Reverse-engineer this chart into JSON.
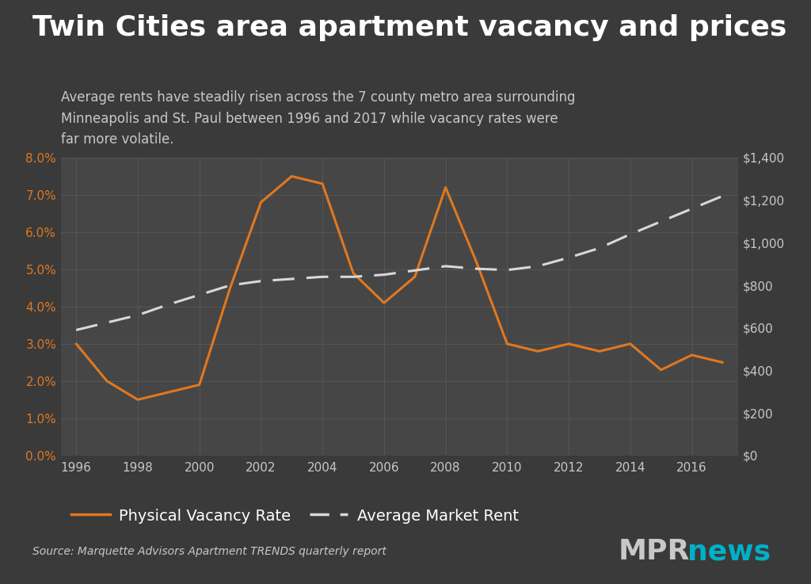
{
  "title": "Twin Cities area apartment vacancy and prices",
  "subtitle": "Average rents have steadily risen across the 7 county metro area surrounding\nMinneapolis and St. Paul between 1996 and 2017 while vacancy rates were\nfar more volatile.",
  "source": "Source: Marquette Advisors Apartment TRENDS quarterly report",
  "bg_color": "#3a3a3a",
  "plot_bg_color": "#464646",
  "vacancy_color": "#e07820",
  "rent_color": "#d8d8d8",
  "title_color": "#ffffff",
  "subtitle_color": "#c8c8c8",
  "left_axis_color": "#e07820",
  "right_axis_color": "#c8c8c8",
  "grid_color": "#585858",
  "vacancy_years": [
    1996,
    1997,
    1998,
    1999,
    2000,
    2001,
    2002,
    2003,
    2004,
    2005,
    2006,
    2007,
    2008,
    2009,
    2010,
    2011,
    2012,
    2013,
    2014,
    2015,
    2016,
    2017
  ],
  "vacancy_values": [
    0.03,
    0.02,
    0.015,
    0.017,
    0.019,
    0.045,
    0.068,
    0.075,
    0.073,
    0.049,
    0.041,
    0.048,
    0.072,
    0.052,
    0.03,
    0.028,
    0.03,
    0.028,
    0.03,
    0.023,
    0.027,
    0.025
  ],
  "rent_years": [
    1996,
    1997,
    1998,
    1999,
    2000,
    2001,
    2002,
    2003,
    2004,
    2005,
    2006,
    2007,
    2008,
    2009,
    2010,
    2011,
    2012,
    2013,
    2014,
    2015,
    2016,
    2017
  ],
  "rent_values": [
    590,
    625,
    660,
    710,
    755,
    800,
    820,
    830,
    840,
    840,
    850,
    870,
    890,
    878,
    872,
    890,
    930,
    975,
    1040,
    1100,
    1160,
    1220
  ],
  "xlim": [
    1995.5,
    2017.5
  ],
  "ylim_left": [
    0.0,
    0.08
  ],
  "ylim_right": [
    0,
    1400
  ],
  "xticks": [
    1996,
    1998,
    2000,
    2002,
    2004,
    2006,
    2008,
    2010,
    2012,
    2014,
    2016
  ],
  "yticks_left": [
    0.0,
    0.01,
    0.02,
    0.03,
    0.04,
    0.05,
    0.06,
    0.07,
    0.08
  ],
  "yticks_right": [
    0,
    200,
    400,
    600,
    800,
    1000,
    1200,
    1400
  ],
  "legend_vacancy": "Physical Vacancy Rate",
  "legend_rent": "Average Market Rent",
  "mpr_color": "#c8c8c8",
  "news_color": "#00b0c8"
}
